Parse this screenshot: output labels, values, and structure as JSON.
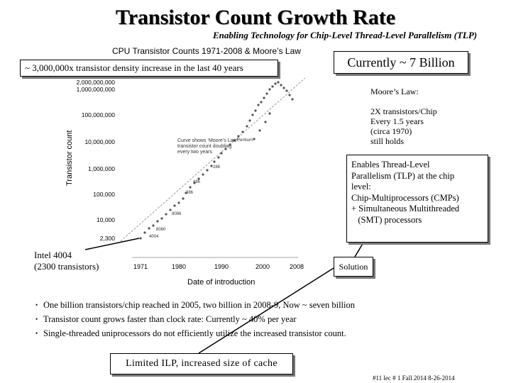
{
  "slide": {
    "title": "Transistor Count Growth Rate",
    "subtitle": "Enabling Technology for Chip-Level Thread-Level Parallelism (TLP)",
    "density_callout": "~ 3,000,000x  transistor density increase in the last 40 years",
    "billion_callout": "Currently ~ 7 Billion",
    "moore_law": {
      "heading": "Moore’s Law:",
      "lines": [
        "2X transistors/Chip",
        "Every 1.5 years",
        "(circa 1970)",
        "still holds"
      ]
    },
    "tlp_box": {
      "lines": [
        "Enables Thread-Level",
        "Parallelism (TLP) at the chip",
        "level:",
        "Chip-Multiprocessors (CMPs)",
        "+ Simultaneous  Multithreaded",
        "   (SMT) processors"
      ]
    },
    "solution_label": "Solution",
    "intel_label": [
      "Intel 4004",
      "(2300 transistors)"
    ],
    "bullets": [
      "One billion transistors/chip reached in 2005, two billion in 2008-9, Now ~ seven billion",
      "Transistor count grows faster than clock rate: Currently  ~ 40% per year",
      "Single-threaded uniprocessors do not efficiently utilize the increased transistor count."
    ],
    "ilp_callout": "Limited ILP, increased size of cache",
    "footer": "#11   lec # 1   Fall 2014   8-26-2014"
  },
  "chart_data": {
    "type": "scatter",
    "title": "CPU Transistor Counts 1971-2008 & Moore’s Law",
    "xlabel": "Date of introduction",
    "ylabel": "Transistor count",
    "x_ticks": [
      "1971",
      "1980",
      "1990",
      "2000",
      "2008"
    ],
    "y_ticks": [
      "2,000,000,000",
      "1,000,000,000",
      "100,000,000",
      "10,000,000",
      "1,000,000",
      "100,000",
      "10,000",
      "2,300"
    ],
    "annotation": [
      "Curve shows ‘Moore’s Law’:",
      "transistor count doubling",
      "every two years"
    ],
    "point_labels": [
      "4004",
      "8080",
      "8086",
      "286",
      "386",
      "486",
      "Pentium"
    ]
  }
}
